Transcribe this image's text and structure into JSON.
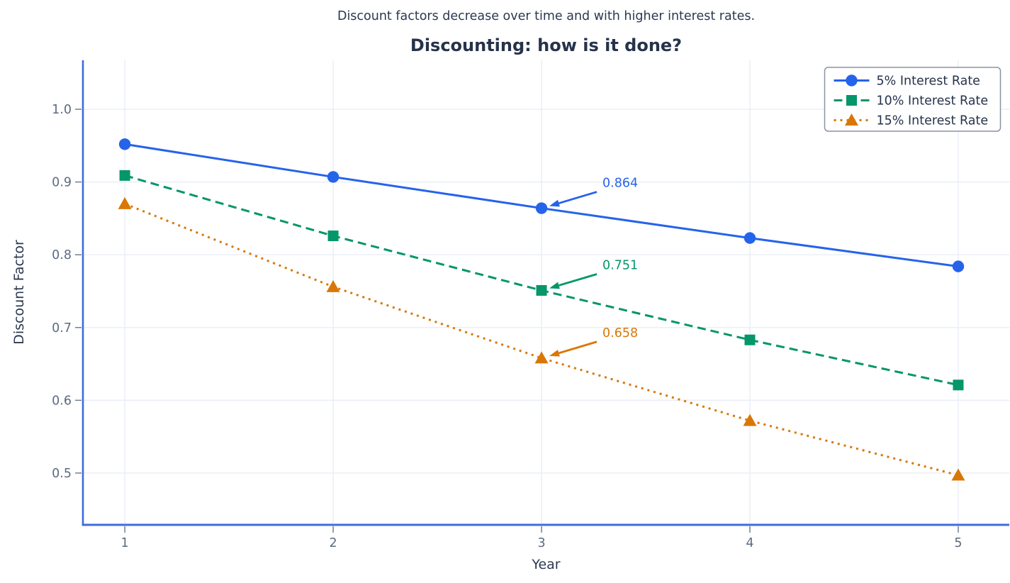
{
  "suptitle": "Discount factors decrease over time and with higher interest rates.",
  "title": "Discounting: how is it done?",
  "chart_data": {
    "type": "line",
    "title": "Discounting: how is it done?",
    "subtitle": "Discount factors decrease over time and with higher interest rates.",
    "xlabel": "Year",
    "ylabel": "Discount Factor",
    "x": [
      1,
      2,
      3,
      4,
      5
    ],
    "series": [
      {
        "name": "5% Interest Rate",
        "values": [
          0.952,
          0.907,
          0.864,
          0.823,
          0.784
        ],
        "color": "#2563EB",
        "line_style": "solid",
        "marker": "circle"
      },
      {
        "name": "10% Interest Rate",
        "values": [
          0.909,
          0.826,
          0.751,
          0.683,
          0.621
        ],
        "color": "#059669",
        "line_style": "dashed",
        "marker": "square"
      },
      {
        "name": "15% Interest Rate",
        "values": [
          0.87,
          0.756,
          0.658,
          0.572,
          0.497
        ],
        "color": "#D97706",
        "line_style": "dotted",
        "marker": "triangle"
      }
    ],
    "annotations": [
      {
        "text": "0.864",
        "x": 3,
        "y": 0.864,
        "color": "#2563EB"
      },
      {
        "text": "0.751",
        "x": 3,
        "y": 0.751,
        "color": "#059669"
      },
      {
        "text": "0.658",
        "x": 3,
        "y": 0.658,
        "color": "#D97706"
      }
    ],
    "x_ticks": [
      "1",
      "2",
      "3",
      "4",
      "5"
    ],
    "x_tick_values": [
      1,
      2,
      3,
      4,
      5
    ],
    "y_ticks": [
      "0.5",
      "0.6",
      "0.7",
      "0.8",
      "0.9",
      "1.0"
    ],
    "y_tick_values": [
      0.5,
      0.6,
      0.7,
      0.8,
      0.9,
      1.0
    ],
    "xlim": [
      0.799,
      5.245
    ],
    "ylim": [
      0.4288,
      1.0673
    ],
    "grid": true,
    "legend_position": "upper right"
  },
  "colors": {
    "spine": "#3E6BE0",
    "grid": "#E8EEF6",
    "tick": "#6B7687",
    "tick_label": "#5C6B80",
    "legend_border": "#8B93A4",
    "legend_text": "#26334A",
    "background": "#FFFFFF"
  }
}
